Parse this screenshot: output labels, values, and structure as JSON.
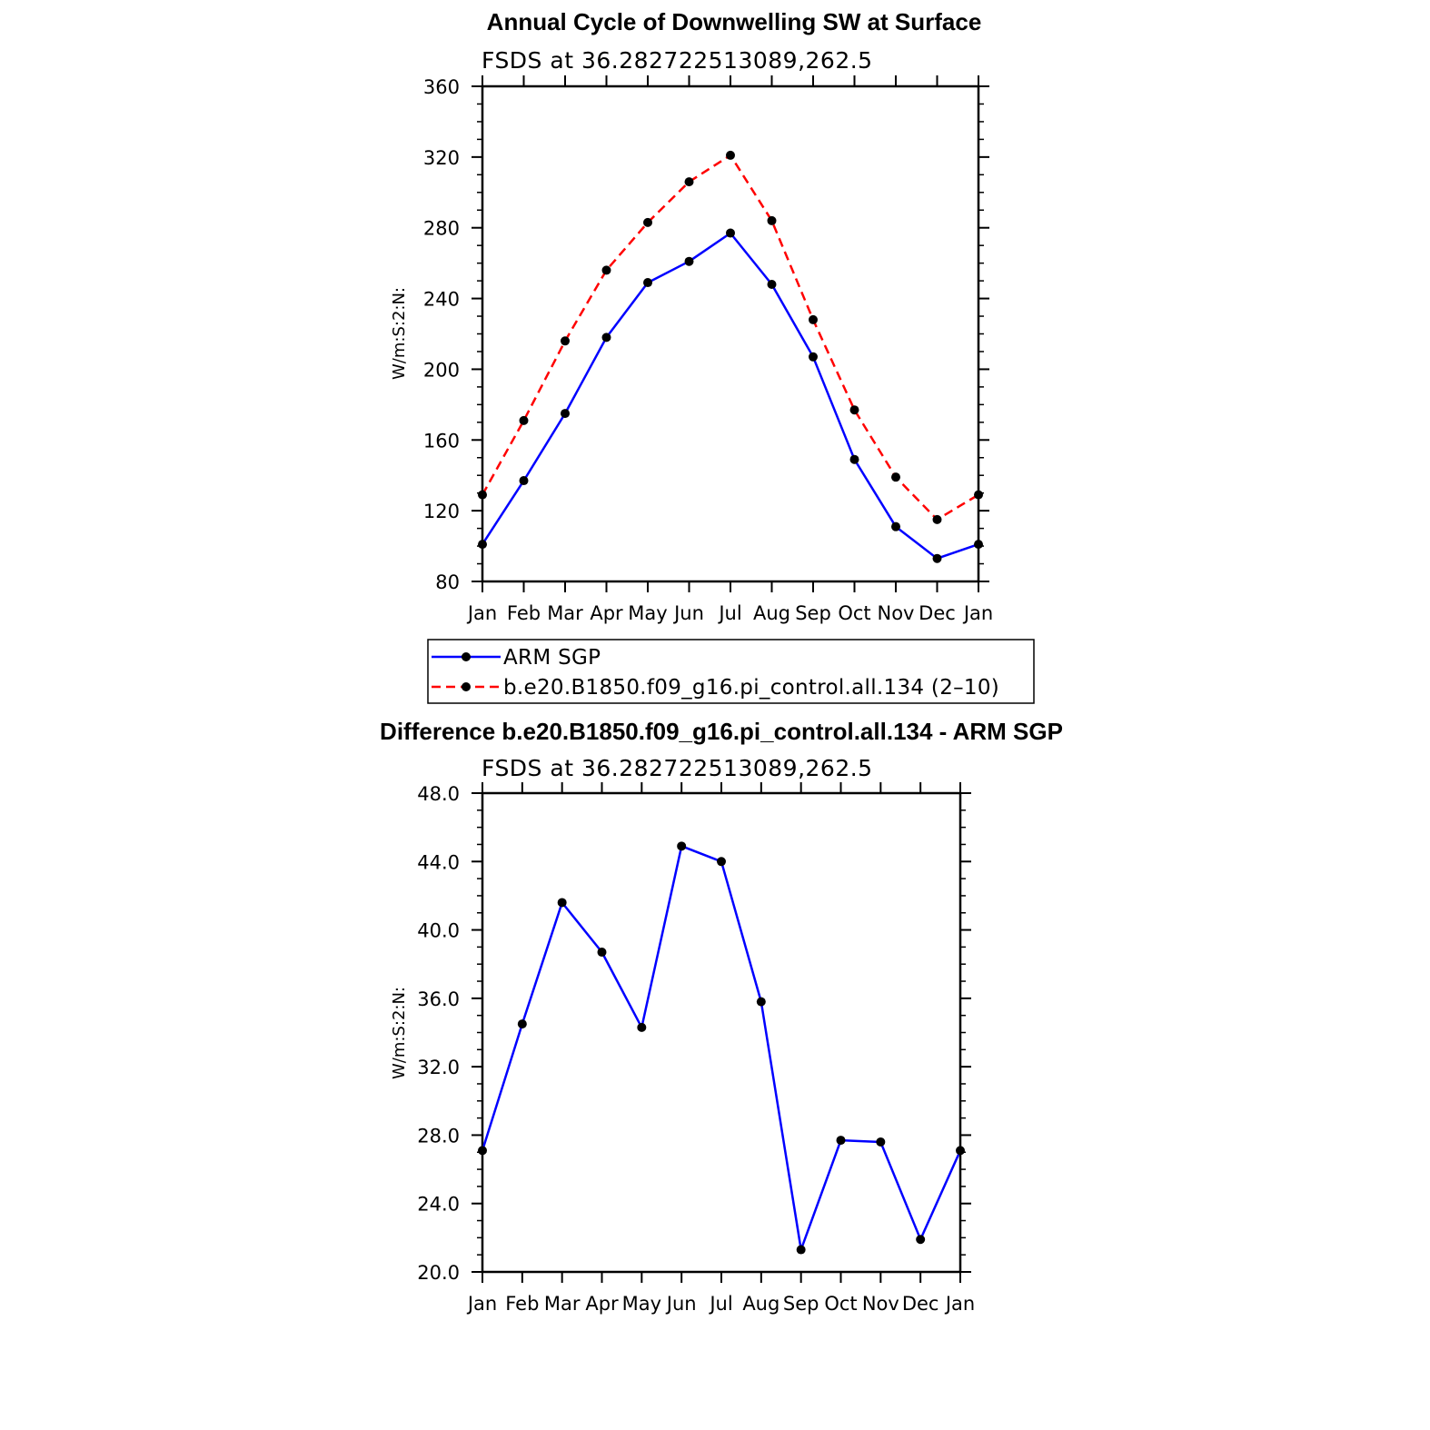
{
  "chart_data": [
    {
      "type": "line",
      "title": "Annual Cycle of Downwelling SW at Surface",
      "subtitle": "FSDS at 36.282722513089,262.5",
      "xlabel": "",
      "ylabel": "W/m:S:2:N:",
      "categories": [
        "Jan",
        "Feb",
        "Mar",
        "Apr",
        "May",
        "Jun",
        "Jul",
        "Aug",
        "Sep",
        "Oct",
        "Nov",
        "Dec",
        "Jan"
      ],
      "ylim": [
        80,
        360
      ],
      "yticks": [
        80,
        120,
        160,
        200,
        240,
        280,
        320,
        360
      ],
      "ytick_labels": [
        "80",
        "120",
        "160",
        "200",
        "240",
        "280",
        "320",
        "360"
      ],
      "grid": false,
      "legend_position": "below",
      "series": [
        {
          "name": "ARM SGP",
          "color": "#0000ff",
          "dash": "solid",
          "values": [
            101,
            137,
            175,
            218,
            249,
            261,
            277,
            248,
            207,
            149,
            111,
            93,
            101
          ]
        },
        {
          "name": "b.e20.B1850.f09_g16.pi_control.all.134 (2–10)",
          "color": "#ff0000",
          "dash": "dashed",
          "values": [
            129,
            171,
            216,
            256,
            283,
            306,
            321,
            284,
            228,
            177,
            139,
            115,
            129
          ]
        }
      ]
    },
    {
      "type": "line",
      "title": "Difference b.e20.B1850.f09_g16.pi_control.all.134 - ARM SGP",
      "subtitle": "FSDS at 36.282722513089,262.5",
      "xlabel": "",
      "ylabel": "W/m:S:2:N:",
      "categories": [
        "Jan",
        "Feb",
        "Mar",
        "Apr",
        "May",
        "Jun",
        "Jul",
        "Aug",
        "Sep",
        "Oct",
        "Nov",
        "Dec",
        "Jan"
      ],
      "ylim": [
        20,
        48
      ],
      "yticks": [
        20,
        24,
        28,
        32,
        36,
        40,
        44,
        48
      ],
      "ytick_labels": [
        "20.0",
        "24.0",
        "28.0",
        "32.0",
        "36.0",
        "40.0",
        "44.0",
        "48.0"
      ],
      "grid": false,
      "series": [
        {
          "color": "#0000ff",
          "dash": "solid",
          "values": [
            27.1,
            34.5,
            41.6,
            38.7,
            34.3,
            44.9,
            44.0,
            35.8,
            21.3,
            27.7,
            27.6,
            21.9,
            27.1
          ]
        }
      ]
    }
  ]
}
